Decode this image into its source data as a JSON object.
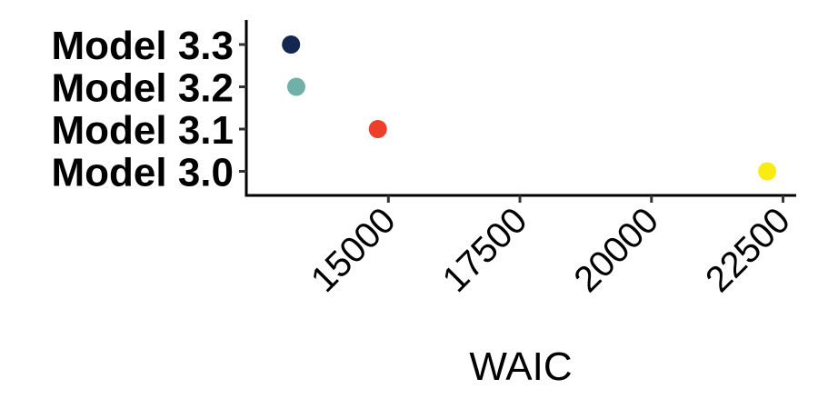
{
  "chart_data": {
    "type": "scatter",
    "title": "",
    "xlabel": "WAIC",
    "ylabel": "",
    "xlim": [
      12300,
      22750
    ],
    "x_ticks": [
      15000,
      17500,
      20000,
      22500
    ],
    "grid": false,
    "legend": "none",
    "points": [
      {
        "category": "Model 3.3",
        "x": 13150,
        "color": "#14274e"
      },
      {
        "category": "Model 3.2",
        "x": 13250,
        "color": "#6fb1a9"
      },
      {
        "category": "Model 3.1",
        "x": 14800,
        "color": "#ee3f2b"
      },
      {
        "category": "Model 3.0",
        "x": 22200,
        "color": "#f8ec10"
      }
    ]
  }
}
